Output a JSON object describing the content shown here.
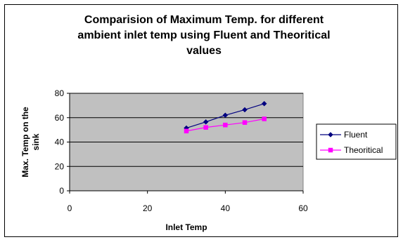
{
  "chart_data": {
    "type": "line",
    "title": "Comparision of Maximum Temp. for different ambient inlet temp using Fluent and Theoritical values",
    "title_lines": [
      "Comparision of Maximum Temp. for different",
      "ambient inlet temp using Fluent and Theoritical",
      "values"
    ],
    "xlabel": "Inlet Temp",
    "ylabel_lines": [
      "Max. Temp on the",
      "sink"
    ],
    "xlim": [
      0,
      60
    ],
    "ylim": [
      0,
      80
    ],
    "x_ticks": [
      0,
      20,
      40,
      60
    ],
    "y_ticks": [
      0,
      20,
      40,
      60,
      80
    ],
    "grid": "horizontal",
    "legend_position": "right",
    "plot_background": "#c0c0c0",
    "x": [
      30,
      35,
      40,
      45,
      50
    ],
    "series": [
      {
        "name": "Fluent",
        "values": [
          51.5,
          56.5,
          62,
          66.5,
          71.5
        ],
        "color": "#000080",
        "marker": "diamond"
      },
      {
        "name": "Theoritical",
        "values": [
          49,
          52,
          54,
          56,
          59
        ],
        "color": "#ff00ff",
        "marker": "square"
      }
    ]
  }
}
